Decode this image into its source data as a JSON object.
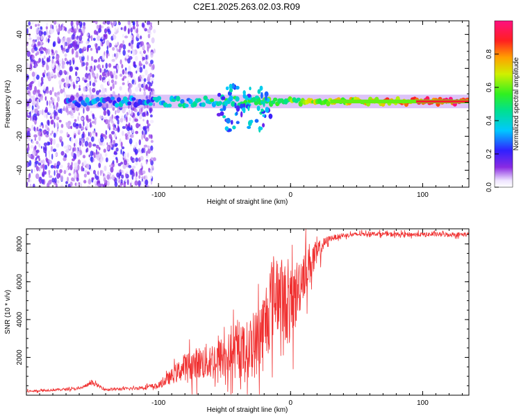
{
  "title": "C2E1.2025.263.02.03.R09",
  "chart_data": [
    {
      "type": "heatmap",
      "xlabel": "Height of straight line (km)",
      "ylabel": "Frequency (Hz)",
      "xlim": [
        -200,
        135
      ],
      "ylim": [
        -50,
        48
      ],
      "xticks": [
        "-100",
        "0",
        "100"
      ],
      "xtick_values": [
        -100,
        0,
        100
      ],
      "yticks": [
        "-40",
        "-20",
        "0",
        "20",
        "40"
      ],
      "ytick_values": [
        -40,
        -20,
        0,
        20,
        40
      ],
      "colorbar": {
        "label": "Normalized spectral amplitude",
        "range": [
          0,
          1
        ],
        "ticks": [
          "0.0",
          "0.2",
          "0.4",
          "0.6",
          "0.8"
        ],
        "tick_values": [
          0.0,
          0.2,
          0.4,
          0.6,
          0.8
        ]
      },
      "features": [
        {
          "name": "broadband noise",
          "x_range": [
            -200,
            -103
          ],
          "freq_range": [
            -50,
            48
          ],
          "amplitude": 0.15
        },
        {
          "name": "main signal band",
          "x_range": [
            -170,
            135
          ],
          "freq_center": 0.5,
          "freq_halfwidth": 3,
          "amplitude_start": 0.25,
          "amplitude_end": 0.95
        },
        {
          "name": "scattered blobs",
          "x_range": [
            -55,
            -15
          ],
          "freq_range": [
            -17,
            10
          ],
          "amplitude": 0.3
        }
      ]
    },
    {
      "type": "line",
      "color": "#f03030",
      "xlabel": "Height of straight line (km)",
      "ylabel": "SNR (10 * v/v)",
      "xlim": [
        -200,
        135
      ],
      "ylim": [
        0,
        8800
      ],
      "xticks": [
        "-100",
        "0",
        "100"
      ],
      "xtick_values": [
        -100,
        0,
        100
      ],
      "yticks": [
        "2000",
        "4000",
        "6000",
        "8000"
      ],
      "ytick_values": [
        2000,
        4000,
        6000,
        8000
      ],
      "x": [
        -200,
        -180,
        -160,
        -150,
        -140,
        -120,
        -100,
        -90,
        -80,
        -70,
        -60,
        -50,
        -40,
        -30,
        -25,
        -20,
        -15,
        -10,
        -5,
        0,
        5,
        10,
        15,
        20,
        25,
        30,
        40,
        50,
        60,
        80,
        100,
        120,
        135
      ],
      "y": [
        200,
        280,
        350,
        650,
        300,
        350,
        500,
        1000,
        1500,
        1700,
        1800,
        2000,
        2200,
        2500,
        2800,
        3500,
        5000,
        5500,
        5000,
        4500,
        5500,
        6600,
        7000,
        7400,
        8000,
        8300,
        8450,
        8500,
        8550,
        8500,
        8500,
        8500,
        8500
      ],
      "spread": [
        80,
        80,
        90,
        150,
        90,
        100,
        200,
        500,
        900,
        1100,
        1300,
        1500,
        1700,
        2000,
        2400,
        2800,
        3000,
        2800,
        2600,
        2600,
        2200,
        1800,
        1400,
        900,
        400,
        200,
        150,
        150,
        130,
        150,
        150,
        150,
        150
      ]
    }
  ]
}
